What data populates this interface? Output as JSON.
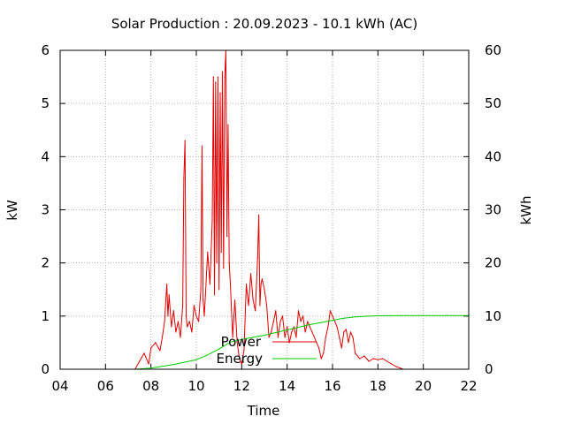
{
  "chart_data": {
    "type": "line",
    "title": "Solar Production : 20.09.2023 - 10.1 kWh (AC)",
    "xlabel": "Time",
    "ylabel": "kW",
    "y2label": "kWh",
    "xlim": [
      4,
      22
    ],
    "ylim": [
      0,
      6
    ],
    "y2lim": [
      0,
      60
    ],
    "x_ticks": [
      4,
      6,
      8,
      10,
      12,
      14,
      16,
      18,
      20,
      22
    ],
    "x_tick_labels": [
      "04",
      "06",
      "08",
      "10",
      "12",
      "14",
      "16",
      "18",
      "20",
      "22"
    ],
    "y_ticks": [
      "0",
      "1",
      "2",
      "3",
      "4",
      "5",
      "6"
    ],
    "y2_ticks": [
      "0",
      "10",
      "20",
      "30",
      "40",
      "50",
      "60"
    ],
    "grid": true,
    "legend_position": "bottom-center",
    "series": [
      {
        "name": "Power",
        "axis": "left",
        "color": "#e00000",
        "x": [
          7.3,
          7.5,
          7.7,
          7.9,
          8.0,
          8.2,
          8.4,
          8.5,
          8.6,
          8.7,
          8.75,
          8.8,
          8.9,
          9.0,
          9.1,
          9.2,
          9.3,
          9.4,
          9.45,
          9.5,
          9.55,
          9.6,
          9.7,
          9.8,
          9.9,
          10.0,
          10.1,
          10.2,
          10.25,
          10.3,
          10.35,
          10.4,
          10.5,
          10.6,
          10.7,
          10.75,
          10.8,
          10.85,
          10.9,
          10.95,
          11.0,
          11.05,
          11.1,
          11.15,
          11.2,
          11.25,
          11.3,
          11.35,
          11.4,
          11.45,
          11.5,
          11.6,
          11.7,
          11.8,
          11.9,
          12.0,
          12.1,
          12.2,
          12.3,
          12.4,
          12.5,
          12.6,
          12.7,
          12.75,
          12.8,
          12.85,
          12.9,
          13.0,
          13.1,
          13.2,
          13.3,
          13.4,
          13.5,
          13.6,
          13.7,
          13.8,
          13.9,
          14.0,
          14.1,
          14.2,
          14.3,
          14.4,
          14.5,
          14.6,
          14.7,
          14.8,
          14.9,
          15.0,
          15.1,
          15.2,
          15.3,
          15.4,
          15.5,
          15.6,
          15.7,
          15.8,
          15.9,
          16.0,
          16.1,
          16.2,
          16.3,
          16.4,
          16.5,
          16.6,
          16.7,
          16.8,
          16.9,
          17.0,
          17.2,
          17.4,
          17.6,
          17.8,
          18.0,
          18.2,
          18.4,
          18.6,
          18.8,
          19.0,
          19.1
        ],
        "values": [
          0.0,
          0.15,
          0.3,
          0.1,
          0.4,
          0.5,
          0.35,
          0.6,
          0.9,
          1.6,
          1.0,
          1.4,
          0.8,
          1.1,
          0.7,
          0.9,
          0.6,
          1.2,
          3.6,
          4.3,
          1.0,
          0.8,
          0.9,
          0.7,
          1.2,
          1.0,
          0.9,
          1.5,
          4.2,
          1.3,
          1.0,
          1.4,
          2.2,
          1.6,
          2.8,
          5.5,
          1.4,
          5.4,
          2.0,
          5.5,
          1.5,
          5.2,
          2.2,
          5.6,
          1.9,
          5.5,
          6.0,
          2.5,
          4.6,
          2.0,
          1.6,
          0.6,
          1.3,
          0.5,
          0.2,
          0.1,
          0.35,
          1.6,
          1.2,
          1.8,
          1.3,
          1.1,
          2.1,
          2.9,
          1.2,
          1.6,
          1.7,
          1.5,
          1.2,
          0.6,
          0.7,
          0.9,
          1.1,
          0.6,
          0.9,
          1.0,
          0.6,
          0.8,
          0.5,
          0.7,
          0.8,
          0.6,
          1.1,
          0.9,
          1.0,
          0.7,
          0.9,
          0.8,
          0.7,
          0.6,
          0.5,
          0.4,
          0.2,
          0.3,
          0.6,
          0.8,
          1.1,
          1.0,
          0.9,
          0.8,
          0.6,
          0.4,
          0.7,
          0.75,
          0.5,
          0.7,
          0.6,
          0.3,
          0.2,
          0.25,
          0.15,
          0.2,
          0.18,
          0.2,
          0.15,
          0.1,
          0.05,
          0.02,
          0.0
        ]
      },
      {
        "name": "Energy",
        "axis": "right",
        "color": "#00cc00",
        "x": [
          7.3,
          8.0,
          9.0,
          10.0,
          10.5,
          11.0,
          11.5,
          12.0,
          12.5,
          13.0,
          13.5,
          14.0,
          14.5,
          15.0,
          15.5,
          16.0,
          16.5,
          17.0,
          17.5,
          18.0,
          18.5,
          19.0,
          20.0,
          21.0,
          22.0
        ],
        "values": [
          0.0,
          0.2,
          0.9,
          1.8,
          2.7,
          3.8,
          5.1,
          5.6,
          6.0,
          6.4,
          6.9,
          7.4,
          7.9,
          8.4,
          8.8,
          9.2,
          9.6,
          9.85,
          9.97,
          10.05,
          10.08,
          10.1,
          10.1,
          10.1,
          10.1
        ]
      }
    ]
  }
}
